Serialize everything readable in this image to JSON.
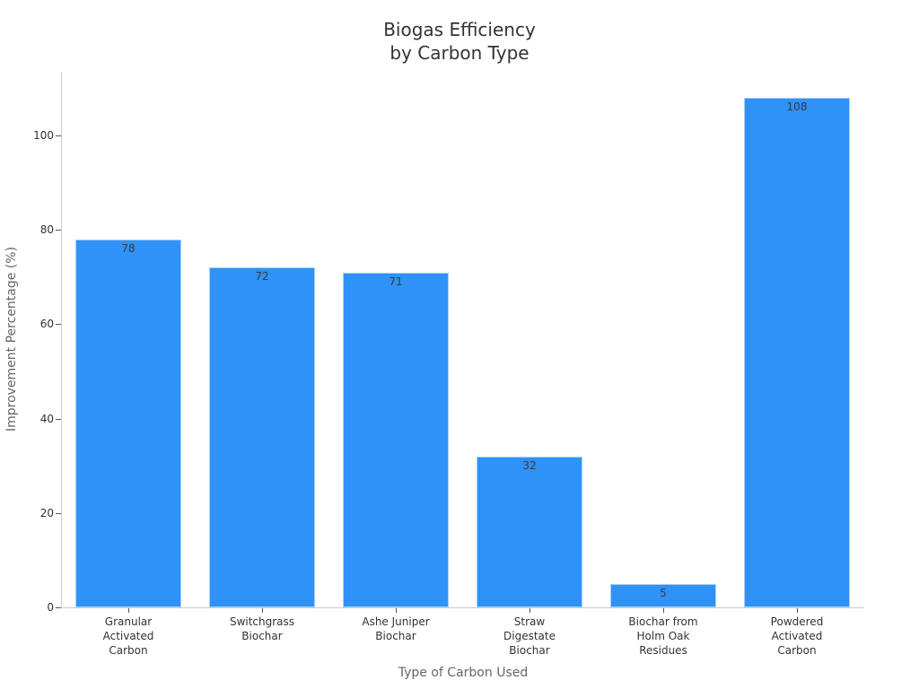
{
  "chart_data": {
    "type": "bar",
    "title": "Biogas Efficiency\nby Carbon Type",
    "title_lines": [
      "Biogas Efficiency",
      "by Carbon Type"
    ],
    "xlabel": "Type of Carbon Used",
    "ylabel": "Improvement Percentage (%)",
    "categories": [
      "Granular Activated Carbon",
      "Switchgrass Biochar",
      "Ashe Juniper Biochar",
      "Straw Digestate Biochar",
      "Biochar from Holm Oak Residues",
      "Powdered Activated Carbon"
    ],
    "category_labels_wrapped": [
      "Granular\nActivated\nCarbon",
      "Switchgrass\nBiochar",
      "Ashe Juniper\nBiochar",
      "Straw\nDigestate\nBiochar",
      "Biochar from\nHolm Oak\nResidues",
      "Powdered\nActivated\nCarbon"
    ],
    "values": [
      78,
      72,
      71,
      32,
      5,
      108
    ],
    "value_labels": [
      "78",
      "72",
      "71",
      "32",
      "5",
      "108"
    ],
    "yticks": [
      0,
      20,
      40,
      60,
      80,
      100
    ],
    "ytick_labels": [
      "0",
      "20",
      "40",
      "60",
      "80",
      "100"
    ],
    "ylim": [
      0,
      113
    ],
    "grid": false,
    "legend": null,
    "bar_color": "#2f92f8"
  }
}
